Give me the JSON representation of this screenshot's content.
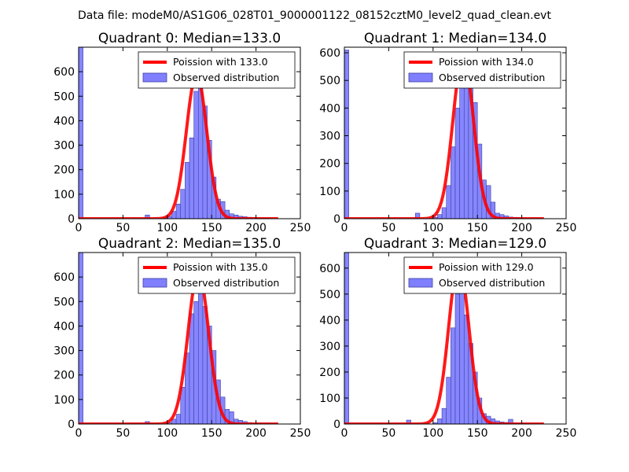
{
  "suptitle": "Data file: modeM0/AS1G06_028T01_9000001122_08152cztM0_level2_quad_clean.evt",
  "colors": {
    "poisson_line": "#ff0000",
    "histogram_fill": "#7f7fff",
    "histogram_edge": "#4040a0"
  },
  "chart_data": [
    {
      "type": "bar",
      "title": "Quadrant 0: Median=133.0",
      "median": 133.0,
      "xlim": [
        0,
        250
      ],
      "ylim": [
        0,
        700
      ],
      "xticks": [
        0,
        50,
        100,
        150,
        200,
        250
      ],
      "yticks": [
        0,
        100,
        200,
        300,
        400,
        500,
        600
      ],
      "bin_width": 5,
      "hist_bins": [
        [
          0,
          700
        ],
        [
          75,
          15
        ],
        [
          95,
          5
        ],
        [
          100,
          10
        ],
        [
          105,
          30
        ],
        [
          110,
          60
        ],
        [
          115,
          120
        ],
        [
          120,
          230
        ],
        [
          125,
          330
        ],
        [
          130,
          520
        ],
        [
          135,
          540
        ],
        [
          140,
          460
        ],
        [
          145,
          320
        ],
        [
          150,
          170
        ],
        [
          155,
          80
        ],
        [
          160,
          70
        ],
        [
          165,
          35
        ],
        [
          170,
          20
        ],
        [
          175,
          15
        ],
        [
          180,
          10
        ],
        [
          185,
          8
        ],
        [
          190,
          6
        ],
        [
          195,
          4
        ],
        [
          200,
          3
        ],
        [
          205,
          2
        ],
        [
          210,
          2
        ]
      ],
      "legend": [
        "Poission with 133.0",
        "Observed distribution"
      ],
      "poisson_peak": 590
    },
    {
      "type": "bar",
      "title": "Quadrant 1: Median=134.0",
      "median": 134.0,
      "xlim": [
        0,
        250
      ],
      "ylim": [
        0,
        620
      ],
      "xticks": [
        0,
        50,
        100,
        150,
        200,
        250
      ],
      "yticks": [
        0,
        100,
        200,
        300,
        400,
        500,
        600
      ],
      "bin_width": 5,
      "hist_bins": [
        [
          0,
          610
        ],
        [
          80,
          20
        ],
        [
          100,
          5
        ],
        [
          105,
          15
        ],
        [
          110,
          40
        ],
        [
          115,
          120
        ],
        [
          120,
          260
        ],
        [
          125,
          400
        ],
        [
          130,
          480
        ],
        [
          135,
          560
        ],
        [
          140,
          480
        ],
        [
          145,
          420
        ],
        [
          150,
          270
        ],
        [
          155,
          140
        ],
        [
          160,
          120
        ],
        [
          165,
          60
        ],
        [
          170,
          20
        ],
        [
          175,
          15
        ],
        [
          180,
          10
        ],
        [
          185,
          6
        ],
        [
          190,
          5
        ],
        [
          195,
          3
        ],
        [
          200,
          2
        ]
      ],
      "legend": [
        "Poission with 134.0",
        "Observed distribution"
      ],
      "poisson_peak": 590
    },
    {
      "type": "bar",
      "title": "Quadrant 2: Median=135.0",
      "median": 135.0,
      "xlim": [
        0,
        250
      ],
      "ylim": [
        0,
        700
      ],
      "xticks": [
        0,
        50,
        100,
        150,
        200,
        250
      ],
      "yticks": [
        0,
        100,
        200,
        300,
        400,
        500,
        600
      ],
      "bin_width": 5,
      "hist_bins": [
        [
          0,
          700
        ],
        [
          75,
          10
        ],
        [
          100,
          5
        ],
        [
          105,
          20
        ],
        [
          110,
          40
        ],
        [
          115,
          150
        ],
        [
          120,
          290
        ],
        [
          125,
          450
        ],
        [
          130,
          500
        ],
        [
          135,
          640
        ],
        [
          140,
          480
        ],
        [
          145,
          400
        ],
        [
          150,
          300
        ],
        [
          155,
          180
        ],
        [
          160,
          110
        ],
        [
          165,
          60
        ],
        [
          170,
          50
        ],
        [
          175,
          20
        ],
        [
          180,
          15
        ],
        [
          185,
          10
        ],
        [
          190,
          6
        ],
        [
          195,
          4
        ],
        [
          200,
          3
        ]
      ],
      "legend": [
        "Poission with 135.0",
        "Observed distribution"
      ],
      "poisson_peak": 620
    },
    {
      "type": "bar",
      "title": "Quadrant 3: Median=129.0",
      "median": 129.0,
      "xlim": [
        0,
        250
      ],
      "ylim": [
        0,
        660
      ],
      "xticks": [
        0,
        50,
        100,
        150,
        200,
        250
      ],
      "yticks": [
        0,
        100,
        200,
        300,
        400,
        500,
        600
      ],
      "bin_width": 5,
      "hist_bins": [
        [
          0,
          660
        ],
        [
          70,
          15
        ],
        [
          100,
          5
        ],
        [
          105,
          20
        ],
        [
          110,
          60
        ],
        [
          115,
          180
        ],
        [
          120,
          370
        ],
        [
          125,
          500
        ],
        [
          130,
          600
        ],
        [
          135,
          420
        ],
        [
          140,
          310
        ],
        [
          145,
          200
        ],
        [
          150,
          100
        ],
        [
          155,
          40
        ],
        [
          160,
          30
        ],
        [
          165,
          20
        ],
        [
          170,
          12
        ],
        [
          175,
          8
        ],
        [
          180,
          6
        ],
        [
          185,
          18
        ],
        [
          190,
          4
        ],
        [
          195,
          3
        ],
        [
          200,
          2
        ]
      ],
      "legend": [
        "Poission with 129.0",
        "Observed distribution"
      ],
      "poisson_peak": 620
    }
  ]
}
